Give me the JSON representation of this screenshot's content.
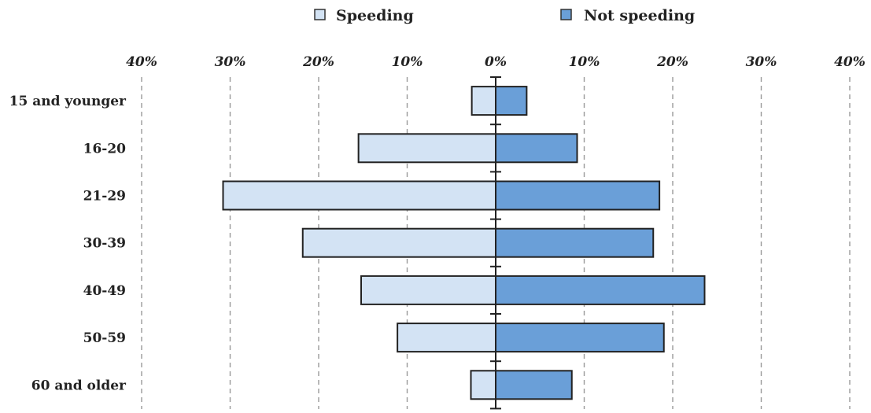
{
  "chart_data": {
    "type": "bar",
    "orientation": "horizontal-diverging",
    "categories": [
      "15 and younger",
      "16-20",
      "21-29",
      "30-39",
      "40-49",
      "50-59",
      "60 and older"
    ],
    "series": [
      {
        "name": "Speeding",
        "values": [
          2.7,
          15.5,
          30.8,
          21.8,
          15.2,
          11.1,
          2.8
        ],
        "color": "#d3e3f4"
      },
      {
        "name": "Not speeding",
        "values": [
          3.5,
          9.2,
          18.5,
          17.8,
          23.6,
          19.0,
          8.6
        ],
        "color": "#6a9fd8"
      }
    ],
    "xticks": [
      40,
      30,
      20,
      10,
      0,
      10,
      20,
      30,
      40
    ],
    "xtick_labels": [
      "40%",
      "30%",
      "20%",
      "10%",
      "0%",
      "10%",
      "20%",
      "30%",
      "40%"
    ],
    "xlim": [
      -40,
      40
    ],
    "grid": "vertical-dashed",
    "legend_position": "top",
    "title": "",
    "xlabel": "",
    "ylabel": ""
  }
}
